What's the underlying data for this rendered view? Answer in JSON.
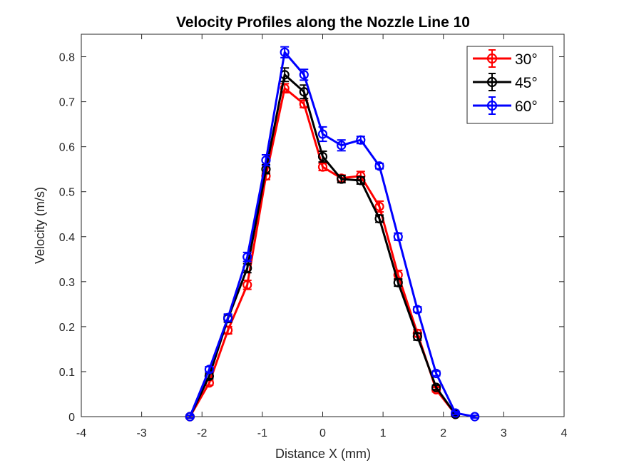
{
  "chart_data": {
    "type": "line",
    "title": "Velocity Profiles along the Nozzle Line 10",
    "xlabel": "Distance X (mm)",
    "ylabel": "Velocity (m/s)",
    "xlim": [
      -4,
      4
    ],
    "ylim": [
      0,
      0.85
    ],
    "xticks": [
      -4,
      -3,
      -2,
      -1,
      0,
      1,
      2,
      3,
      4
    ],
    "xtick_labels": [
      "-4",
      "-3",
      "-2",
      "-1",
      "0",
      "1",
      "2",
      "3",
      "4"
    ],
    "yticks": [
      0,
      0.1,
      0.2,
      0.3,
      0.4,
      0.5,
      0.6,
      0.7,
      0.8
    ],
    "ytick_labels": [
      "0",
      "0.1",
      "0.2",
      "0.3",
      "0.4",
      "0.5",
      "0.6",
      "0.7",
      "0.8"
    ],
    "grid": false,
    "legend_position": "top-right",
    "series": [
      {
        "name": "30°",
        "color": "#ff0000",
        "x": [
          -2.2,
          -1.88,
          -1.57,
          -1.25,
          -0.94,
          -0.63,
          -0.31,
          0.0,
          0.31,
          0.63,
          0.94,
          1.25,
          1.57,
          1.88,
          2.2
        ],
        "y": [
          0.0,
          0.075,
          0.192,
          0.293,
          0.535,
          0.73,
          0.695,
          0.555,
          0.53,
          0.535,
          0.467,
          0.315,
          0.185,
          0.06,
          0.005
        ],
        "err": [
          0.003,
          0.005,
          0.008,
          0.01,
          0.008,
          0.01,
          0.008,
          0.008,
          0.007,
          0.01,
          0.012,
          0.01,
          0.008,
          0.005,
          0.003
        ]
      },
      {
        "name": "45°",
        "color": "#000000",
        "x": [
          -2.2,
          -1.88,
          -1.57,
          -1.25,
          -0.94,
          -0.63,
          -0.31,
          0.0,
          0.31,
          0.63,
          0.94,
          1.25,
          1.57,
          1.88,
          2.2
        ],
        "y": [
          0.0,
          0.09,
          0.218,
          0.33,
          0.55,
          0.76,
          0.722,
          0.578,
          0.528,
          0.525,
          0.44,
          0.298,
          0.178,
          0.065,
          0.005
        ],
        "err": [
          0.003,
          0.006,
          0.008,
          0.01,
          0.01,
          0.015,
          0.015,
          0.012,
          0.008,
          0.008,
          0.008,
          0.008,
          0.008,
          0.005,
          0.003
        ]
      },
      {
        "name": "60°",
        "color": "#0000ff",
        "x": [
          -2.2,
          -1.88,
          -1.57,
          -1.25,
          -0.94,
          -0.63,
          -0.31,
          0.0,
          0.31,
          0.63,
          0.94,
          1.25,
          1.57,
          1.88,
          2.2,
          2.52
        ],
        "y": [
          0.0,
          0.105,
          0.22,
          0.355,
          0.57,
          0.81,
          0.76,
          0.628,
          0.603,
          0.615,
          0.557,
          0.4,
          0.238,
          0.096,
          0.008,
          0.0
        ],
        "err": [
          0.003,
          0.006,
          0.008,
          0.01,
          0.012,
          0.012,
          0.012,
          0.016,
          0.012,
          0.008,
          0.006,
          0.008,
          0.006,
          0.005,
          0.003,
          0.003
        ]
      }
    ]
  }
}
